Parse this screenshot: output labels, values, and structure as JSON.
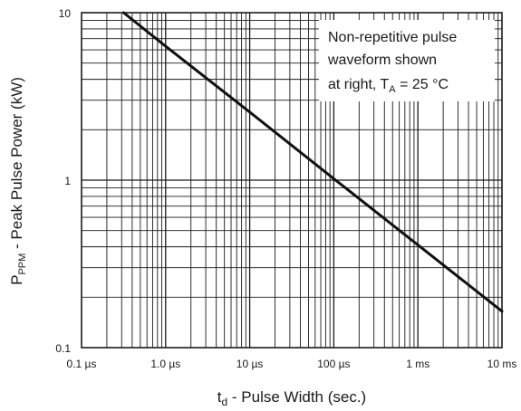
{
  "chart_data": {
    "type": "line",
    "x_scale": "log",
    "y_scale": "log",
    "xlim": [
      1e-07,
      0.01
    ],
    "ylim": [
      0.1,
      10
    ],
    "grid": true,
    "x_ticks": [
      {
        "value": 1e-07,
        "label": "0.1 µs"
      },
      {
        "value": 1e-06,
        "label": "1.0 µs"
      },
      {
        "value": 1e-05,
        "label": "10 µs"
      },
      {
        "value": 0.0001,
        "label": "100 µs"
      },
      {
        "value": 0.001,
        "label": "1 ms"
      },
      {
        "value": 0.01,
        "label": "10 ms"
      }
    ],
    "y_ticks": [
      {
        "value": 0.1,
        "label": "0.1"
      },
      {
        "value": 1,
        "label": "1"
      },
      {
        "value": 10,
        "label": "10"
      }
    ],
    "xlabel": {
      "main": "t",
      "sub": "d",
      "rest": " - Pulse Width (sec.)"
    },
    "ylabel": {
      "main": "P",
      "sub": "PPM",
      "rest": " - Peak Pulse Power (kW)"
    },
    "annotation": {
      "line1": "Non-repetitive pulse",
      "line2": "waveform shown",
      "line3_pre": "at right, T",
      "line3_sub": "A",
      "line3_post": " = 25 °C"
    },
    "series": [
      {
        "x": [
          3.16e-07,
          1e-06,
          1e-05,
          0.0001,
          0.001,
          0.01
        ],
        "y": [
          10,
          6.3,
          2.55,
          1.02,
          0.41,
          0.165
        ]
      }
    ]
  }
}
